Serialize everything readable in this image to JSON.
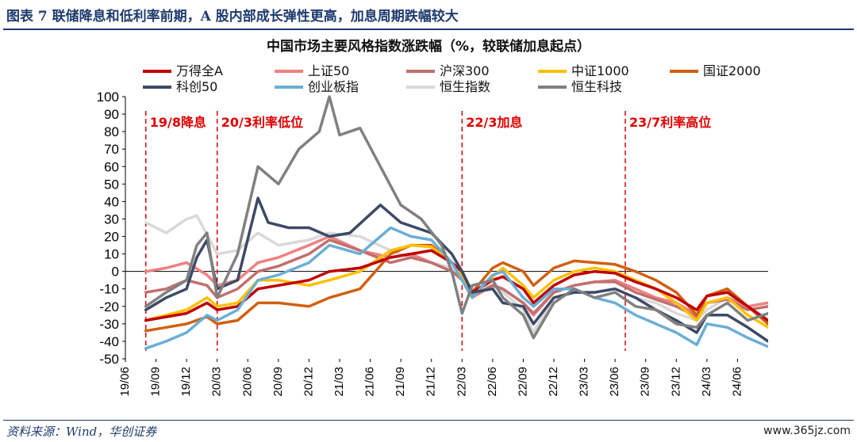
{
  "figure": {
    "caption": "图表 7  联储降息和低利率前期，A 股内部成长弹性更高，加息周期跌幅较大",
    "source": "资料来源：Wind，华创证券",
    "site_mark": "www.365jz.com"
  },
  "colors": {
    "wande_a": "#c00000",
    "sz50": "#f08080",
    "hs300": "#c0706e",
    "zz1000": "#ffc000",
    "gz2000": "#d06010",
    "kc50": "#3d4a66",
    "cyb": "#6baed6",
    "hsi": "#d9d9d9",
    "hstech": "#808080",
    "event": "#e00000"
  },
  "chart_data": {
    "type": "line",
    "title": "中国市场主要风格指数涨跌幅（%，较联储加息起点）",
    "xlabel": "",
    "ylabel": "",
    "ylim": [
      -50,
      100
    ],
    "yticks": [
      100,
      90,
      80,
      70,
      60,
      50,
      40,
      30,
      20,
      10,
      0,
      -10,
      -20,
      -30,
      -40,
      -50
    ],
    "xlim": [
      "2019-06",
      "2024-09"
    ],
    "xtick_labels": [
      "19/06",
      "19/09",
      "19/12",
      "20/03",
      "20/06",
      "20/09",
      "20/12",
      "21/03",
      "21/06",
      "21/09",
      "21/12",
      "22/03",
      "22/06",
      "22/09",
      "22/12",
      "23/03",
      "23/06",
      "23/09",
      "23/12",
      "24/03",
      "24/06"
    ],
    "legend_position": "top",
    "grid": false,
    "events": [
      {
        "label": "19/8降息",
        "x": "2019-08"
      },
      {
        "label": "20/3利率低位",
        "x": "2020-03"
      },
      {
        "label": "22/3加息",
        "x": "2022-03"
      },
      {
        "label": "23/7利率高位",
        "x": "2023-07"
      }
    ],
    "series": [
      {
        "key": "wande_a",
        "name": "万得全A",
        "x": [
          "2019-08",
          "2019-10",
          "2019-12",
          "2020-02",
          "2020-03",
          "2020-05",
          "2020-07",
          "2020-09",
          "2020-12",
          "2021-02",
          "2021-05",
          "2021-08",
          "2021-10",
          "2021-12",
          "2022-02",
          "2022-03",
          "2022-04",
          "2022-06",
          "2022-07",
          "2022-09",
          "2022-10",
          "2022-12",
          "2023-02",
          "2023-04",
          "2023-06",
          "2023-08",
          "2023-10",
          "2023-12",
          "2024-02",
          "2024-03",
          "2024-05",
          "2024-07",
          "2024-09"
        ],
        "y": [
          -28,
          -26,
          -24,
          -18,
          -22,
          -20,
          -10,
          -8,
          -5,
          0,
          2,
          8,
          10,
          12,
          5,
          0,
          -12,
          -5,
          -3,
          -10,
          -18,
          -8,
          -2,
          0,
          -1,
          -6,
          -10,
          -15,
          -22,
          -14,
          -12,
          -20,
          -28
        ]
      },
      {
        "key": "sz50",
        "name": "上证50",
        "x": [
          "2019-08",
          "2019-10",
          "2019-12",
          "2020-02",
          "2020-03",
          "2020-05",
          "2020-07",
          "2020-09",
          "2020-12",
          "2021-02",
          "2021-05",
          "2021-08",
          "2021-10",
          "2021-12",
          "2022-02",
          "2022-03",
          "2022-04",
          "2022-06",
          "2022-07",
          "2022-09",
          "2022-10",
          "2022-12",
          "2023-02",
          "2023-04",
          "2023-06",
          "2023-08",
          "2023-10",
          "2023-12",
          "2024-02",
          "2024-03",
          "2024-05",
          "2024-07",
          "2024-09"
        ],
        "y": [
          0,
          2,
          5,
          -2,
          -8,
          -5,
          5,
          8,
          15,
          20,
          12,
          8,
          10,
          5,
          0,
          -5,
          -15,
          -8,
          -10,
          -18,
          -25,
          -12,
          -8,
          -6,
          -5,
          -10,
          -15,
          -18,
          -25,
          -18,
          -15,
          -20,
          -18
        ]
      },
      {
        "key": "hs300",
        "name": "沪深300",
        "x": [
          "2019-08",
          "2019-10",
          "2019-12",
          "2020-02",
          "2020-03",
          "2020-05",
          "2020-07",
          "2020-09",
          "2020-12",
          "2021-02",
          "2021-05",
          "2021-08",
          "2021-10",
          "2021-12",
          "2022-02",
          "2022-03",
          "2022-04",
          "2022-06",
          "2022-07",
          "2022-09",
          "2022-10",
          "2022-12",
          "2023-02",
          "2023-04",
          "2023-06",
          "2023-08",
          "2023-10",
          "2023-12",
          "2024-02",
          "2024-03",
          "2024-05",
          "2024-07",
          "2024-09"
        ],
        "y": [
          -12,
          -10,
          -5,
          -8,
          -15,
          -10,
          0,
          3,
          10,
          18,
          12,
          5,
          8,
          5,
          0,
          -4,
          -14,
          -8,
          -10,
          -18,
          -24,
          -12,
          -8,
          -6,
          -6,
          -12,
          -16,
          -20,
          -26,
          -18,
          -16,
          -22,
          -20
        ]
      },
      {
        "key": "zz1000",
        "name": "中证1000",
        "x": [
          "2019-08",
          "2019-10",
          "2019-12",
          "2020-02",
          "2020-03",
          "2020-05",
          "2020-07",
          "2020-09",
          "2020-12",
          "2021-02",
          "2021-05",
          "2021-08",
          "2021-10",
          "2021-12",
          "2022-02",
          "2022-03",
          "2022-04",
          "2022-06",
          "2022-07",
          "2022-09",
          "2022-10",
          "2022-12",
          "2023-02",
          "2023-04",
          "2023-06",
          "2023-08",
          "2023-10",
          "2023-12",
          "2024-02",
          "2024-03",
          "2024-05",
          "2024-07",
          "2024-09"
        ],
        "y": [
          -28,
          -25,
          -22,
          -15,
          -20,
          -18,
          -5,
          -5,
          -8,
          -5,
          0,
          12,
          15,
          14,
          5,
          -2,
          -15,
          -3,
          2,
          -8,
          -15,
          -5,
          0,
          2,
          0,
          -5,
          -10,
          -18,
          -28,
          -18,
          -15,
          -25,
          -32
        ]
      },
      {
        "key": "gz2000",
        "name": "国证2000",
        "x": [
          "2019-08",
          "2019-10",
          "2019-12",
          "2020-02",
          "2020-03",
          "2020-05",
          "2020-07",
          "2020-09",
          "2020-12",
          "2021-02",
          "2021-05",
          "2021-08",
          "2021-10",
          "2021-12",
          "2022-02",
          "2022-03",
          "2022-04",
          "2022-06",
          "2022-07",
          "2022-09",
          "2022-10",
          "2022-12",
          "2023-02",
          "2023-04",
          "2023-06",
          "2023-08",
          "2023-10",
          "2023-12",
          "2024-02",
          "2024-03",
          "2024-05",
          "2024-07",
          "2024-09"
        ],
        "y": [
          -34,
          -32,
          -30,
          -26,
          -30,
          -28,
          -18,
          -18,
          -20,
          -15,
          -10,
          10,
          15,
          15,
          5,
          0,
          -12,
          2,
          5,
          0,
          -8,
          2,
          6,
          5,
          4,
          0,
          -5,
          -12,
          -25,
          -14,
          -10,
          -20,
          -30
        ]
      },
      {
        "key": "kc50",
        "name": "科创50",
        "x": [
          "2019-08",
          "2019-10",
          "2019-12",
          "2020-01",
          "2020-02",
          "2020-03",
          "2020-05",
          "2020-07",
          "2020-08",
          "2020-10",
          "2020-12",
          "2021-02",
          "2021-04",
          "2021-07",
          "2021-09",
          "2021-12",
          "2022-02",
          "2022-03",
          "2022-04",
          "2022-06",
          "2022-07",
          "2022-09",
          "2022-10",
          "2022-12",
          "2023-02",
          "2023-04",
          "2023-06",
          "2023-08",
          "2023-10",
          "2023-12",
          "2024-02",
          "2024-03",
          "2024-05",
          "2024-07",
          "2024-09"
        ],
        "y": [
          -22,
          -15,
          -10,
          8,
          18,
          -10,
          -5,
          42,
          28,
          25,
          25,
          20,
          22,
          38,
          28,
          22,
          10,
          0,
          -12,
          -10,
          -18,
          -20,
          -30,
          -15,
          -12,
          -12,
          -10,
          -15,
          -22,
          -28,
          -35,
          -25,
          -25,
          -32,
          -40
        ]
      },
      {
        "key": "cyb",
        "name": "创业板指",
        "x": [
          "2019-08",
          "2019-10",
          "2019-12",
          "2020-02",
          "2020-03",
          "2020-05",
          "2020-07",
          "2020-09",
          "2020-12",
          "2021-02",
          "2021-05",
          "2021-08",
          "2021-10",
          "2021-12",
          "2022-02",
          "2022-03",
          "2022-04",
          "2022-06",
          "2022-07",
          "2022-09",
          "2022-10",
          "2022-12",
          "2023-02",
          "2023-04",
          "2023-06",
          "2023-08",
          "2023-10",
          "2023-12",
          "2024-02",
          "2024-03",
          "2024-05",
          "2024-07",
          "2024-09"
        ],
        "y": [
          -44,
          -40,
          -35,
          -25,
          -28,
          -22,
          -5,
          -2,
          5,
          15,
          10,
          25,
          20,
          18,
          5,
          -5,
          -15,
          -2,
          0,
          -15,
          -20,
          -10,
          -10,
          -15,
          -18,
          -25,
          -30,
          -35,
          -42,
          -30,
          -32,
          -38,
          -43
        ]
      },
      {
        "key": "hsi",
        "name": "恒生指数",
        "x": [
          "2019-08",
          "2019-10",
          "2019-12",
          "2020-01",
          "2020-03",
          "2020-05",
          "2020-07",
          "2020-09",
          "2020-12",
          "2021-02",
          "2021-05",
          "2021-08",
          "2021-10",
          "2021-12",
          "2022-02",
          "2022-03",
          "2022-04",
          "2022-06",
          "2022-07",
          "2022-09",
          "2022-10",
          "2022-12",
          "2023-02",
          "2023-04",
          "2023-06",
          "2023-08",
          "2023-10",
          "2023-12",
          "2024-02",
          "2024-03",
          "2024-05",
          "2024-07",
          "2024-09"
        ],
        "y": [
          28,
          22,
          30,
          32,
          10,
          12,
          22,
          15,
          18,
          22,
          20,
          12,
          8,
          5,
          2,
          -5,
          -10,
          -8,
          -12,
          -22,
          -35,
          -15,
          -12,
          -12,
          -10,
          -15,
          -18,
          -24,
          -28,
          -22,
          -15,
          -20,
          -18
        ]
      },
      {
        "key": "hstech",
        "name": "恒生科技",
        "x": [
          "2019-08",
          "2019-10",
          "2019-12",
          "2020-01",
          "2020-02",
          "2020-03",
          "2020-05",
          "2020-07",
          "2020-09",
          "2020-11",
          "2021-01",
          "2021-02",
          "2021-03",
          "2021-05",
          "2021-07",
          "2021-09",
          "2021-11",
          "2022-01",
          "2022-02",
          "2022-03",
          "2022-04",
          "2022-06",
          "2022-07",
          "2022-09",
          "2022-10",
          "2022-12",
          "2023-02",
          "2023-04",
          "2023-06",
          "2023-08",
          "2023-10",
          "2023-12",
          "2024-02",
          "2024-03",
          "2024-05",
          "2024-07",
          "2024-09"
        ],
        "y": [
          -20,
          -12,
          -5,
          15,
          22,
          -15,
          10,
          60,
          50,
          70,
          80,
          100,
          78,
          82,
          60,
          38,
          30,
          15,
          0,
          -24,
          -8,
          -5,
          -15,
          -25,
          -38,
          -18,
          -10,
          -15,
          -12,
          -20,
          -22,
          -30,
          -32,
          -25,
          -18,
          -28,
          -24
        ]
      }
    ]
  }
}
